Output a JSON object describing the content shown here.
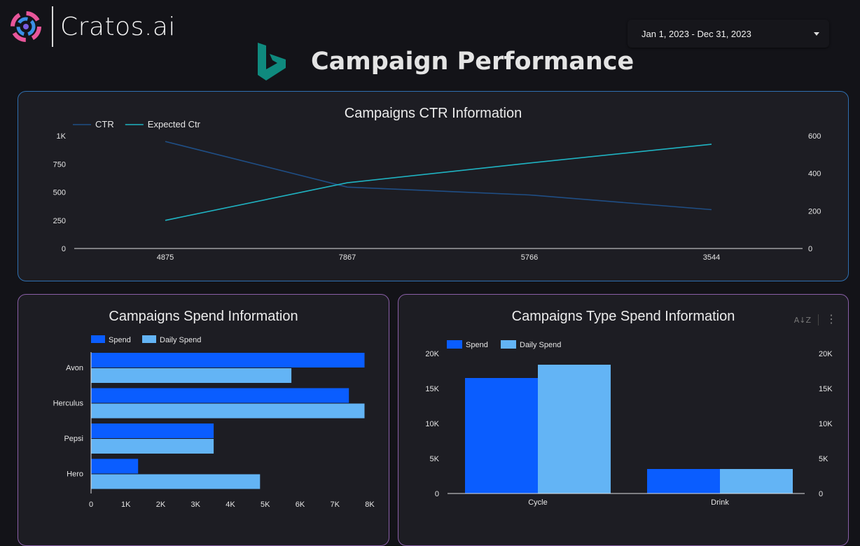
{
  "brand": {
    "name": "Cratos.ai"
  },
  "date_range": {
    "value": "Jan 1, 2023 - Dec 31, 2023"
  },
  "page": {
    "title": "Campaign Performance"
  },
  "colors": {
    "ctr_line": "#1f4e85",
    "expected_line": "#1fb3c2",
    "spend": "#0a5dff",
    "daily_spend": "#63b4f5"
  },
  "icons": {
    "brand_logo": "cratos-logo-icon",
    "bing": "bing-icon",
    "sort": "sort-az-icon",
    "more": "more-vert-icon"
  },
  "ctr_card": {
    "title": "Campaigns CTR Information"
  },
  "spend_card": {
    "title": "Campaigns  Spend Information"
  },
  "type_card": {
    "title": "Campaigns Type  Spend Information"
  },
  "chart_data": [
    {
      "type": "line",
      "title": "Campaigns CTR Information",
      "categories": [
        "4875",
        "7867",
        "5766",
        "3544"
      ],
      "series": [
        {
          "name": "CTR",
          "axis": "left",
          "values": [
            950,
            545,
            475,
            345
          ]
        },
        {
          "name": "Expected Ctr",
          "axis": "right",
          "values": [
            150,
            350,
            455,
            555
          ]
        }
      ],
      "y_left": {
        "range": [
          0,
          1000
        ],
        "ticks": [
          "0",
          "250",
          "500",
          "750",
          "1K"
        ]
      },
      "y_right": {
        "range": [
          0,
          600
        ],
        "ticks": [
          "0",
          "200",
          "400",
          "600"
        ]
      },
      "legend": "top-left",
      "grid": false
    },
    {
      "type": "bar",
      "orientation": "horizontal",
      "title": "Campaigns  Spend Information",
      "categories": [
        "Avon",
        "Herculus",
        "Pepsi",
        "Hero"
      ],
      "series": [
        {
          "name": "Spend",
          "values": [
            7850,
            7400,
            3520,
            1350
          ]
        },
        {
          "name": "Daily Spend",
          "values": [
            5750,
            7850,
            3520,
            4850
          ]
        }
      ],
      "x_range": [
        0,
        8000
      ],
      "x_ticks": [
        "0",
        "1K",
        "2K",
        "3K",
        "4K",
        "5K",
        "6K",
        "7K",
        "8K"
      ],
      "legend": "top-left",
      "grid": false
    },
    {
      "type": "bar",
      "title": "Campaigns Type  Spend Information",
      "categories": [
        "Cycle",
        "Drink"
      ],
      "series": [
        {
          "name": "Spend",
          "values": [
            16500,
            3500
          ]
        },
        {
          "name": "Daily Spend",
          "values": [
            18400,
            3500
          ]
        }
      ],
      "y_range": [
        0,
        20000
      ],
      "y_ticks": [
        "0",
        "5K",
        "10K",
        "15K",
        "20K"
      ],
      "y_right_ticks": [
        "0",
        "5K",
        "10K",
        "15K",
        "20K"
      ],
      "legend": "top-left",
      "grid": false
    }
  ]
}
